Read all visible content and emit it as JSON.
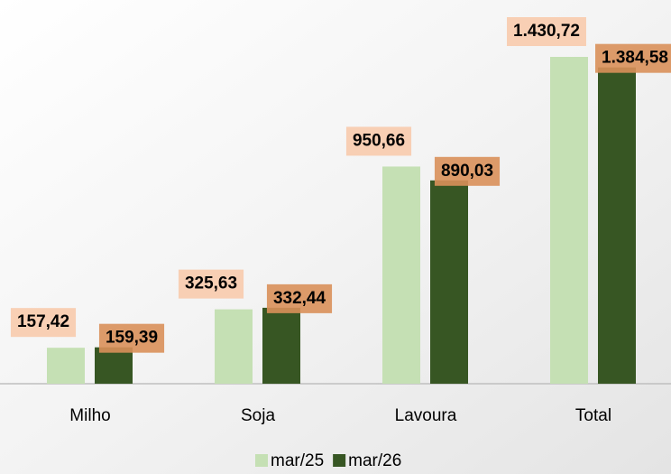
{
  "chart_data": {
    "type": "bar",
    "categories": [
      "Milho",
      "Soja",
      "Lavoura",
      "Total"
    ],
    "series": [
      {
        "name": "mar/25",
        "color": "#c5e0b4",
        "values": [
          157.42,
          325.63,
          950.66,
          1430.72
        ],
        "value_labels": [
          "157,42",
          "325,63",
          "950,66",
          "1.430,72"
        ]
      },
      {
        "name": "mar/26",
        "color": "#375623",
        "values": [
          159.39,
          332.44,
          890.03,
          1384.58
        ],
        "value_labels": [
          "159,39",
          "332,44",
          "890,03",
          "1.384,58"
        ]
      }
    ]
  }
}
